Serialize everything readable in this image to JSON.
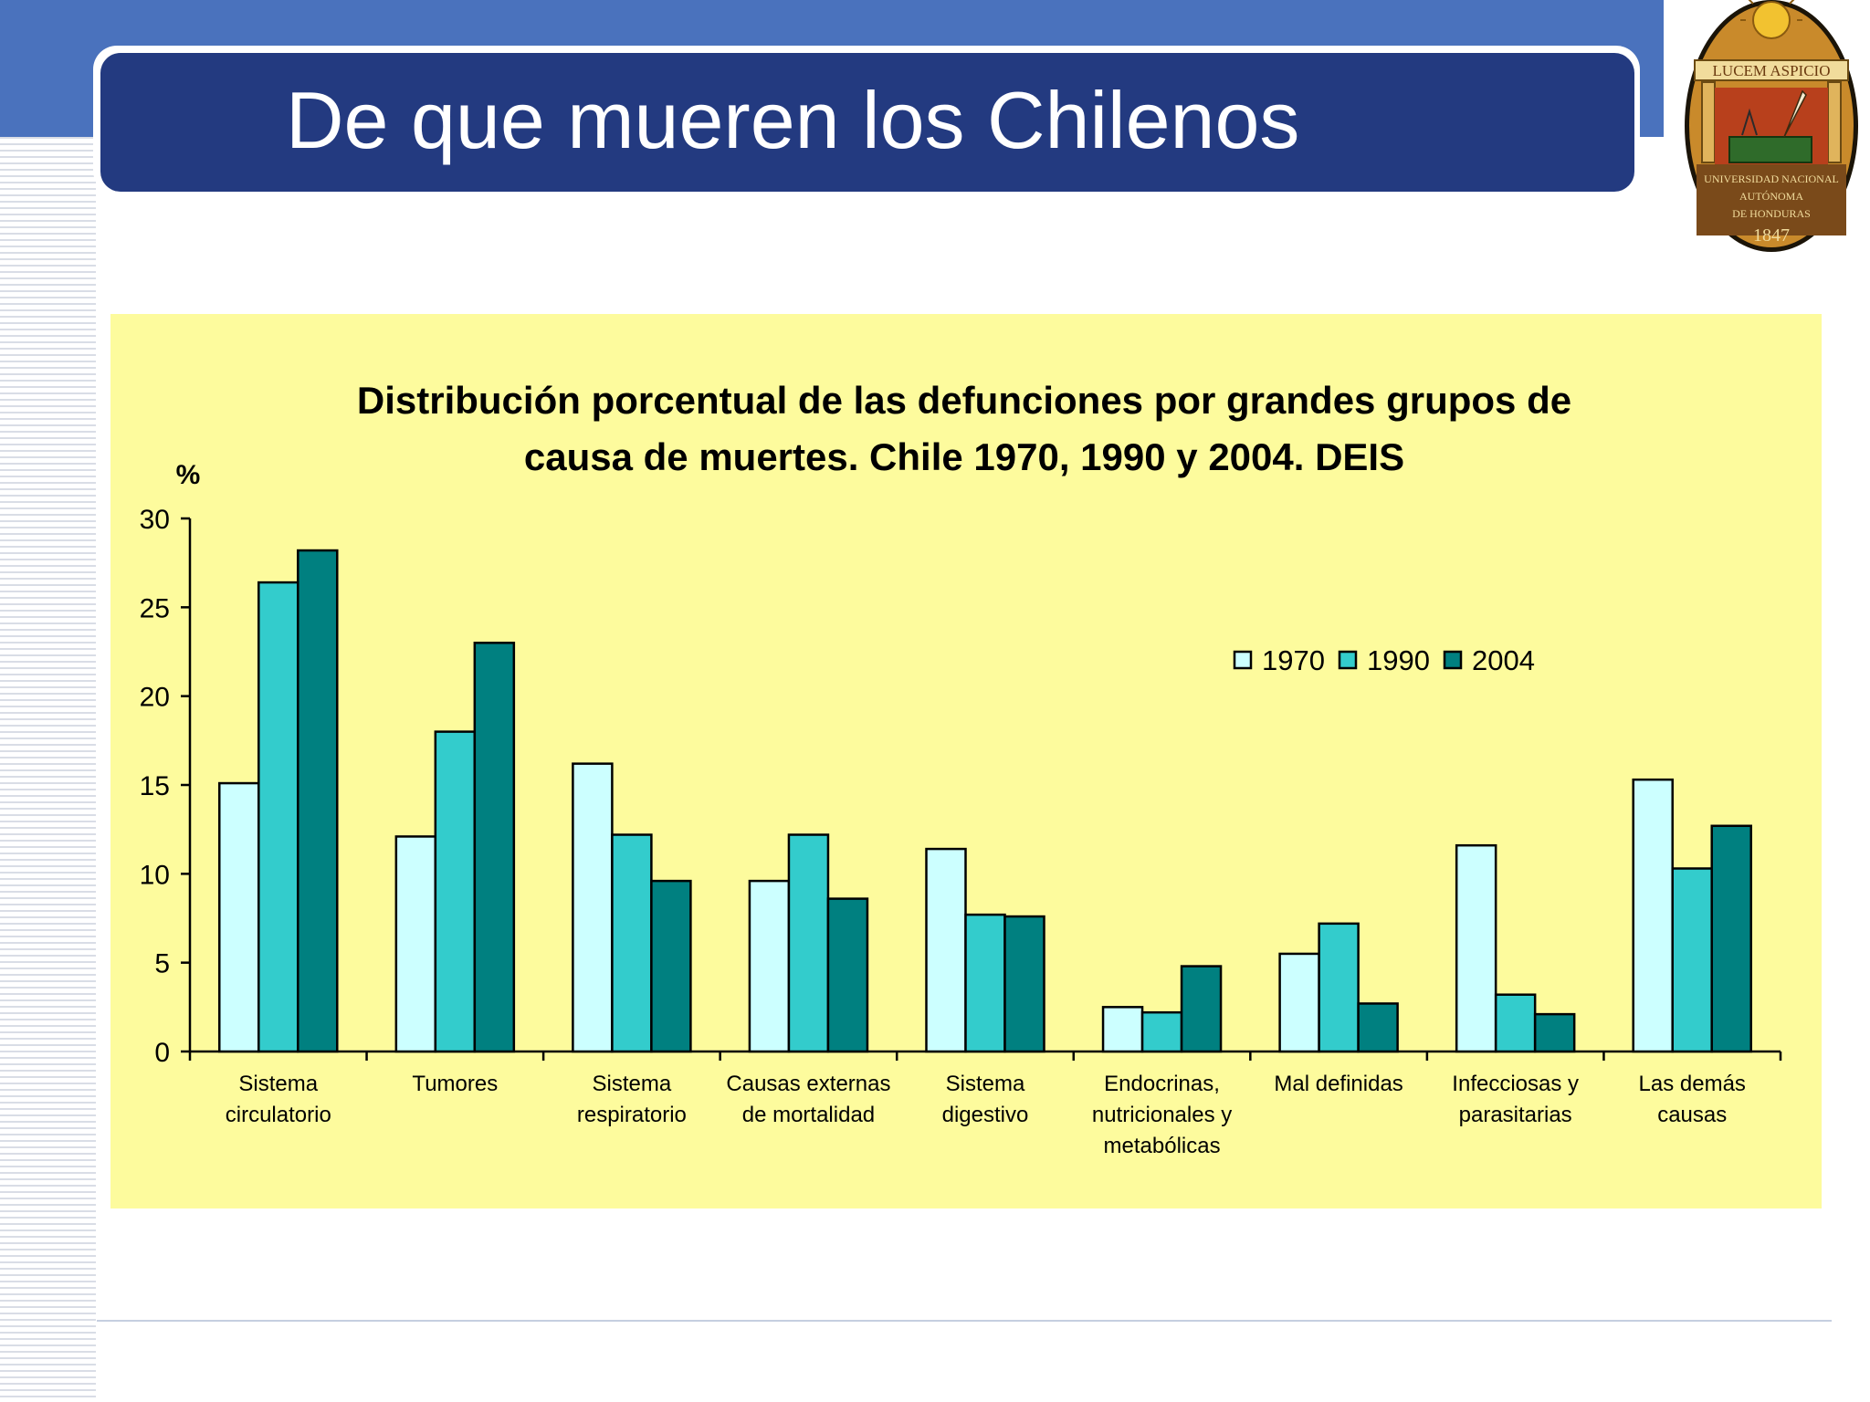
{
  "slide": {
    "title": "De que mueren los Chilenos"
  },
  "logo": {
    "motto": "LUCEM ASPICIO",
    "institution_lines": [
      "UNIVERSIDAD NACIONAL",
      "AUTÓNOMA",
      "DE HONDURAS"
    ],
    "year": "1847"
  },
  "colors": {
    "top_band": "#4a72bd",
    "title_box": "#233a80",
    "panel": "#fdfb9d",
    "series_1970": "#ccffff",
    "series_1990": "#33cccc",
    "series_2004": "#008080"
  },
  "chart_data": {
    "type": "bar",
    "title_lines": [
      "Distribución porcentual de las defunciones por grandes grupos de",
      "causa de muertes. Chile 1970, 1990 y 2004. DEIS"
    ],
    "ylabel": "%",
    "ylim": [
      0,
      30
    ],
    "yticks": [
      0,
      5,
      10,
      15,
      20,
      25,
      30
    ],
    "grid": false,
    "legend_position": "top-right",
    "categories": [
      [
        "Sistema",
        "circulatorio"
      ],
      [
        "Tumores"
      ],
      [
        "Sistema",
        "respiratorio"
      ],
      [
        "Causas externas",
        "de mortalidad"
      ],
      [
        "Sistema",
        "digestivo"
      ],
      [
        "Endocrinas,",
        "nutricionales y",
        "metabólicas"
      ],
      [
        "Mal definidas"
      ],
      [
        "Infecciosas y",
        "parasitarias"
      ],
      [
        "Las demás",
        "causas"
      ]
    ],
    "series": [
      {
        "name": "1970",
        "color": "#ccffff",
        "values": [
          15.1,
          12.1,
          16.2,
          9.6,
          11.4,
          2.5,
          5.5,
          11.6,
          15.3
        ]
      },
      {
        "name": "1990",
        "color": "#33cccc",
        "values": [
          26.4,
          18.0,
          12.2,
          12.2,
          7.7,
          2.2,
          7.2,
          3.2,
          10.3
        ]
      },
      {
        "name": "2004",
        "color": "#008080",
        "values": [
          28.2,
          23.0,
          9.6,
          8.6,
          7.6,
          4.8,
          2.7,
          2.1,
          12.7
        ]
      }
    ]
  }
}
